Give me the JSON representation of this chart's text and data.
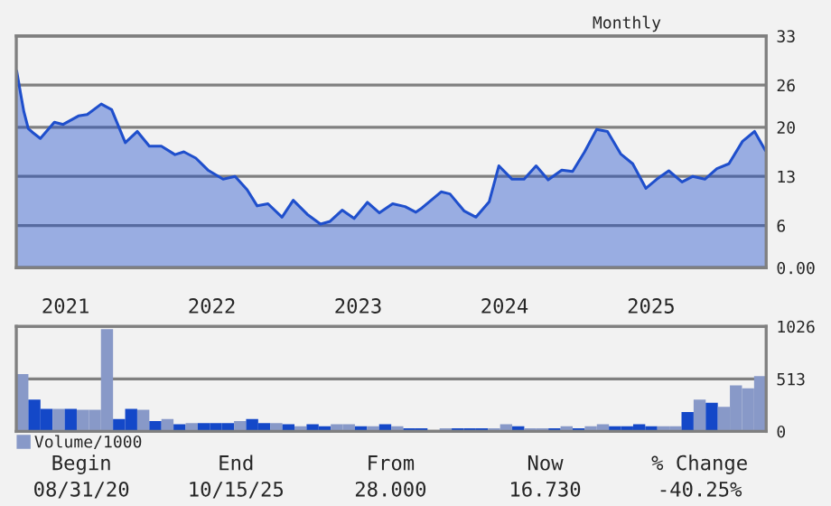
{
  "chart_data": [
    {
      "type": "area",
      "title": "Monthly",
      "x": [
        "2020-09-01",
        "2020-09-12",
        "2020-09-19",
        "2020-09-30",
        "2020-10-12",
        "2020-10-30",
        "2020-12-04",
        "2020-12-26",
        "2021-02-02",
        "2021-02-24",
        "2021-03-31",
        "2021-04-26",
        "2021-05-30",
        "2021-06-29",
        "2021-07-29",
        "2021-08-28",
        "2021-10-01",
        "2021-10-23",
        "2021-11-22",
        "2021-12-22",
        "2022-01-29",
        "2022-02-28",
        "2022-03-30",
        "2022-04-24",
        "2022-05-21",
        "2022-06-25",
        "2022-07-23",
        "2022-08-27",
        "2022-09-29",
        "2022-10-23",
        "2022-11-22",
        "2022-12-22",
        "2023-01-24",
        "2023-02-23",
        "2023-03-28",
        "2023-04-28",
        "2023-05-25",
        "2023-06-09",
        "2023-07-27",
        "2023-08-18",
        "2023-09-22",
        "2023-10-22",
        "2023-11-24",
        "2023-12-18",
        "2024-01-20",
        "2024-02-19",
        "2024-03-20",
        "2024-04-19",
        "2024-05-23",
        "2024-06-19",
        "2024-07-19",
        "2024-08-18",
        "2024-09-14",
        "2024-10-17",
        "2024-11-16",
        "2024-12-19",
        "2025-01-15",
        "2025-02-14",
        "2025-03-19",
        "2025-04-15",
        "2025-05-15",
        "2025-06-14",
        "2025-07-14",
        "2025-08-17",
        "2025-09-16",
        "2025-10-13"
      ],
      "series": [
        {
          "color": "#1f4fcc",
          "values": [
            28.0,
            24.4,
            22.2,
            19.8,
            19.2,
            18.4,
            20.7,
            20.4,
            21.6,
            21.8,
            23.3,
            22.5,
            17.8,
            19.4,
            17.3,
            17.3,
            16.1,
            16.5,
            15.6,
            13.9,
            12.6,
            13.0,
            11.1,
            8.8,
            9.1,
            7.2,
            9.6,
            7.6,
            6.2,
            6.6,
            8.2,
            7.0,
            9.3,
            7.8,
            9.1,
            8.7,
            7.9,
            8.5,
            10.8,
            10.5,
            8.1,
            7.2,
            9.4,
            14.5,
            12.6,
            12.6,
            14.5,
            12.5,
            13.9,
            13.7,
            16.5,
            19.7,
            19.4,
            16.2,
            14.8,
            11.3,
            12.6,
            13.8,
            12.2,
            13.0,
            12.6,
            14.1,
            14.8,
            18.0,
            19.4,
            16.7
          ]
        }
      ],
      "xlim": [
        "2020-08-31",
        "2025-10-15"
      ],
      "xticks": [
        {
          "value": "2021-01-01",
          "label": "2021"
        },
        {
          "value": "2022-01-01",
          "label": "2022"
        },
        {
          "value": "2023-01-01",
          "label": "2023"
        },
        {
          "value": "2024-01-01",
          "label": "2024"
        },
        {
          "value": "2025-01-01",
          "label": "2025"
        }
      ],
      "ylim": [
        0,
        33
      ],
      "yticks": [
        {
          "value": 0,
          "label": "0.00"
        },
        6,
        13,
        20,
        26,
        33
      ],
      "grid": "y",
      "legend": false
    },
    {
      "type": "bar",
      "categories": [
        null,
        null,
        null,
        null,
        null,
        null,
        null,
        null,
        null,
        null,
        null,
        null,
        null,
        null,
        null,
        null,
        null,
        null,
        null,
        null,
        null,
        null,
        null,
        null,
        null,
        null,
        null,
        null,
        null,
        null,
        null,
        null,
        null,
        null,
        null,
        null,
        null,
        null,
        null,
        null,
        null,
        null,
        null,
        null,
        null,
        null,
        null,
        null,
        null,
        null,
        null,
        null,
        null,
        null,
        null,
        null,
        null,
        null,
        null,
        null,
        null,
        null
      ],
      "series": [
        {
          "name": "Volume/1000",
          "color": "#8899c8",
          "colors": [
            "#8899c8",
            "#1448c8",
            "#1448c8",
            "#8899c8",
            "#1448c8",
            "#8899c8",
            "#8899c8",
            "#8899c8",
            "#1448c8",
            "#1448c8",
            "#8899c8",
            "#1448c8",
            "#8899c8",
            "#1448c8",
            "#8899c8",
            "#1448c8",
            "#1448c8",
            "#1448c8",
            "#8899c8",
            "#1448c8",
            "#1448c8",
            "#8899c8",
            "#1448c8",
            "#8899c8",
            "#1448c8",
            "#1448c8",
            "#8899c8",
            "#8899c8",
            "#1448c8",
            "#8899c8",
            "#1448c8",
            "#8899c8",
            "#1448c8",
            "#1448c8",
            "#8899c8",
            "#8899c8",
            "#1448c8",
            "#1448c8",
            "#1448c8",
            "#8899c8",
            "#8899c8",
            "#1448c8",
            "#8899c8",
            "#8899c8",
            "#1448c8",
            "#8899c8",
            "#1448c8",
            "#8899c8",
            "#8899c8",
            "#1448c8",
            "#1448c8",
            "#1448c8",
            "#1448c8",
            "#8899c8",
            "#8899c8",
            "#1448c8",
            "#8899c8",
            "#1448c8",
            "#8899c8",
            "#8899c8",
            "#8899c8",
            "#8899c8"
          ],
          "values": [
            560,
            310,
            220,
            220,
            220,
            210,
            210,
            1000,
            120,
            220,
            210,
            100,
            120,
            70,
            80,
            80,
            80,
            80,
            100,
            120,
            80,
            80,
            70,
            50,
            70,
            50,
            70,
            70,
            50,
            50,
            70,
            50,
            30,
            30,
            10,
            30,
            30,
            30,
            30,
            30,
            70,
            50,
            30,
            30,
            30,
            50,
            30,
            50,
            70,
            50,
            50,
            70,
            50,
            50,
            50,
            190,
            310,
            280,
            240,
            450,
            420,
            540
          ]
        }
      ],
      "ylim": [
        0,
        1026
      ],
      "yticks": [
        0,
        513,
        1026
      ],
      "grid": "y",
      "legend": "bottom left",
      "annotations": [
        "Begin",
        "08/31/20",
        "End",
        "10/15/25",
        "From",
        "28.000",
        "Now",
        "16.730",
        "% Change",
        "-40.25%"
      ]
    }
  ]
}
